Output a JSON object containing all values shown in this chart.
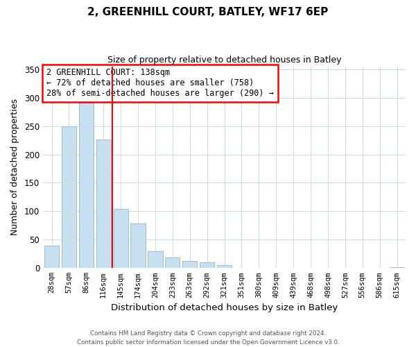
{
  "title": "2, GREENHILL COURT, BATLEY, WF17 6EP",
  "subtitle": "Size of property relative to detached houses in Batley",
  "xlabel": "Distribution of detached houses by size in Batley",
  "ylabel": "Number of detached properties",
  "categories": [
    "28sqm",
    "57sqm",
    "86sqm",
    "116sqm",
    "145sqm",
    "174sqm",
    "204sqm",
    "233sqm",
    "263sqm",
    "292sqm",
    "321sqm",
    "351sqm",
    "380sqm",
    "409sqm",
    "439sqm",
    "468sqm",
    "498sqm",
    "527sqm",
    "556sqm",
    "586sqm",
    "615sqm"
  ],
  "values": [
    39,
    250,
    291,
    226,
    104,
    78,
    30,
    19,
    12,
    10,
    5,
    0,
    0,
    0,
    0,
    0,
    0,
    0,
    0,
    0,
    2
  ],
  "bar_color": "#c8dff0",
  "bar_edge_color": "#9bbdd6",
  "vline_color": "red",
  "annotation_title": "2 GREENHILL COURT: 138sqm",
  "annotation_line1": "← 72% of detached houses are smaller (758)",
  "annotation_line2": "28% of semi-detached houses are larger (290) →",
  "annotation_box_color": "white",
  "annotation_box_edge": "red",
  "ylim": [
    0,
    355
  ],
  "yticks": [
    0,
    50,
    100,
    150,
    200,
    250,
    300,
    350
  ],
  "footnote1": "Contains HM Land Registry data © Crown copyright and database right 2024.",
  "footnote2": "Contains public sector information licensed under the Open Government Licence v3.0."
}
